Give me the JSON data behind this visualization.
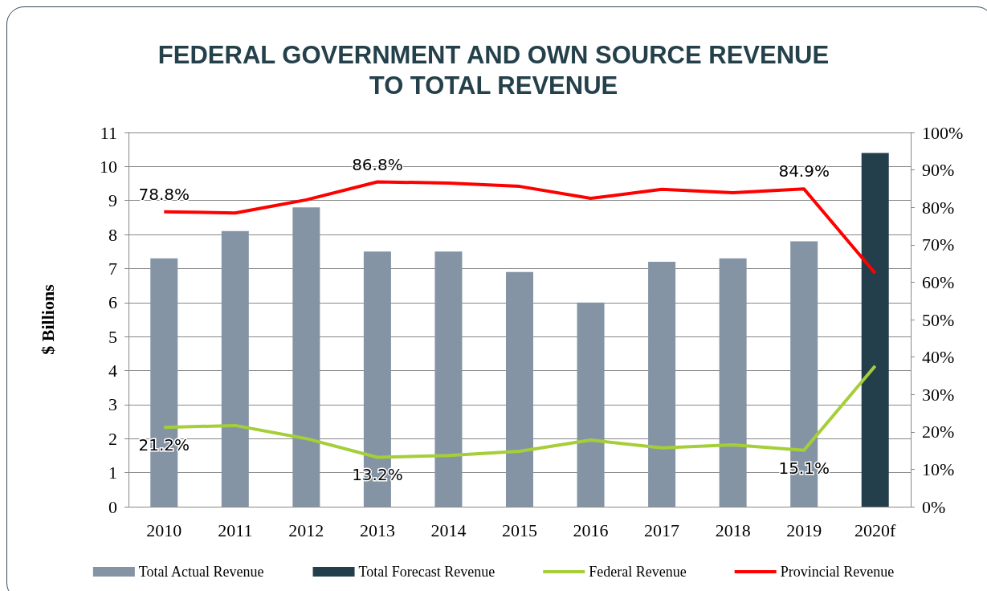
{
  "chart_data": {
    "type": "bar",
    "title": "FEDERAL GOVERNMENT AND OWN SOURCE REVENUE\nTO TOTAL REVENUE",
    "ylabel": "$ Billions",
    "categories": [
      "2010",
      "2011",
      "2012",
      "2013",
      "2014",
      "2015",
      "2016",
      "2017",
      "2018",
      "2019",
      "2020f"
    ],
    "series": [
      {
        "name": "Total Actual Revenue",
        "color": "#8494a5",
        "values": [
          7.3,
          8.1,
          8.8,
          7.5,
          7.5,
          6.9,
          6.0,
          7.2,
          7.3,
          7.8,
          null
        ]
      },
      {
        "name": "Total Forecast Revenue",
        "color": "#243f4c",
        "values": [
          null,
          null,
          null,
          null,
          null,
          null,
          null,
          null,
          null,
          null,
          10.4
        ]
      },
      {
        "name": "Federal Revenue",
        "type": "line",
        "axis": "y2",
        "color": "#a6ce39",
        "values": [
          21.2,
          21.7,
          18.2,
          13.2,
          13.7,
          14.8,
          17.8,
          15.7,
          16.5,
          15.1,
          37.6
        ],
        "value_labels": [
          "21.2%",
          null,
          null,
          "13.2%",
          null,
          null,
          null,
          null,
          null,
          "15.1%",
          null
        ]
      },
      {
        "name": "Provincial Revenue",
        "type": "line",
        "axis": "y2",
        "color": "#ff0000",
        "values": [
          78.8,
          78.5,
          82.0,
          86.8,
          86.5,
          85.6,
          82.4,
          84.8,
          83.9,
          84.9,
          62.4
        ],
        "value_labels": [
          "78.8%",
          null,
          null,
          "86.8%",
          null,
          null,
          null,
          null,
          null,
          "84.9%",
          null
        ]
      }
    ],
    "ylim": [
      0,
      11
    ],
    "yticks": [
      0,
      1,
      2,
      3,
      4,
      5,
      6,
      7,
      8,
      9,
      10,
      11
    ],
    "y2lim": [
      0,
      100
    ],
    "y2ticks": [
      {
        "value": 0,
        "label": "0%"
      },
      {
        "value": 10,
        "label": "10%"
      },
      {
        "value": 20,
        "label": "20%"
      },
      {
        "value": 30,
        "label": "30%"
      },
      {
        "value": 40,
        "label": "40%"
      },
      {
        "value": 50,
        "label": "50%"
      },
      {
        "value": 60,
        "label": "60%"
      },
      {
        "value": 70,
        "label": "70%"
      },
      {
        "value": 80,
        "label": "80%"
      },
      {
        "value": 90,
        "label": "90%"
      },
      {
        "value": 100,
        "label": "100%"
      }
    ],
    "grid": "y",
    "legend": "bottom",
    "marker": "none"
  }
}
